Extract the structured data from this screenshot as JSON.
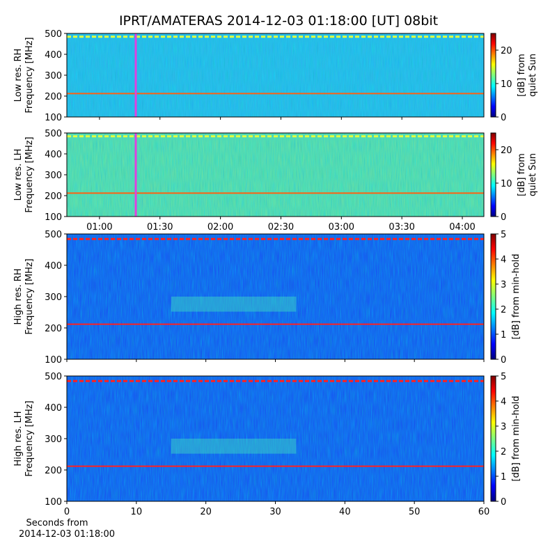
{
  "title": "IPRT/AMATERAS 2014-12-03 01:18:00 [UT]   08bit",
  "xlabel": [
    "Seconds from",
    "2014-12-03 01:18:00"
  ],
  "chart_data": [
    {
      "type": "heatmap",
      "ylabel": [
        "Low res. RH",
        "Frequency [MHz]"
      ],
      "ylim": [
        100,
        500
      ],
      "yticks": [
        100,
        200,
        300,
        400,
        500
      ],
      "marker": 78,
      "marker_color": "#e040e0",
      "base_color": "#33b8e8",
      "colorbar": {
        "label": [
          "[dB] from",
          "quiet Sun"
        ],
        "lim": [
          0,
          25
        ],
        "ticks": [
          0,
          10,
          20
        ]
      }
    },
    {
      "type": "heatmap",
      "ylabel": [
        "Low res. LH",
        "Frequency [MHz]"
      ],
      "ylim": [
        100,
        500
      ],
      "yticks": [
        100,
        200,
        300,
        400,
        500
      ],
      "xlim": [
        43.8,
        250.7
      ],
      "xticks": [
        {
          "value": 60,
          "label": "01:00"
        },
        {
          "value": 90,
          "label": "01:30"
        },
        {
          "value": 120,
          "label": "02:00"
        },
        {
          "value": 150,
          "label": "02:30"
        },
        {
          "value": 180,
          "label": "03:00"
        },
        {
          "value": 210,
          "label": "03:30"
        },
        {
          "value": 240,
          "label": "04:00"
        }
      ],
      "marker": 78,
      "marker_color": "#e040e0",
      "base_color": "#6fe0a0",
      "colorbar": {
        "label": [
          "[dB] from",
          "quiet Sun"
        ],
        "lim": [
          0,
          25
        ],
        "ticks": [
          0,
          10,
          20
        ]
      }
    },
    {
      "type": "heatmap",
      "ylabel": [
        "High res. RH",
        "Frequency [MHz]"
      ],
      "ylim": [
        100,
        500
      ],
      "yticks": [
        100,
        200,
        300,
        400,
        500
      ],
      "xlim": [
        0,
        60
      ],
      "base_color": "#1a4cf0",
      "colorbar": {
        "label": [
          "[dB] from min-hold"
        ],
        "lim": [
          0,
          5
        ],
        "ticks": [
          0,
          1,
          2,
          3,
          4,
          5
        ]
      }
    },
    {
      "type": "heatmap",
      "ylabel": [
        "High res. LH",
        "Frequency [MHz]"
      ],
      "ylim": [
        100,
        500
      ],
      "yticks": [
        100,
        200,
        300,
        400,
        500
      ],
      "xlim": [
        0,
        60
      ],
      "xticks": [
        0,
        10,
        20,
        30,
        40,
        50,
        60
      ],
      "base_color": "#1a4cf0",
      "colorbar": {
        "label": [
          "[dB] from min-hold"
        ],
        "lim": [
          0,
          5
        ],
        "ticks": [
          0,
          1,
          2,
          3,
          4,
          5
        ]
      }
    }
  ]
}
